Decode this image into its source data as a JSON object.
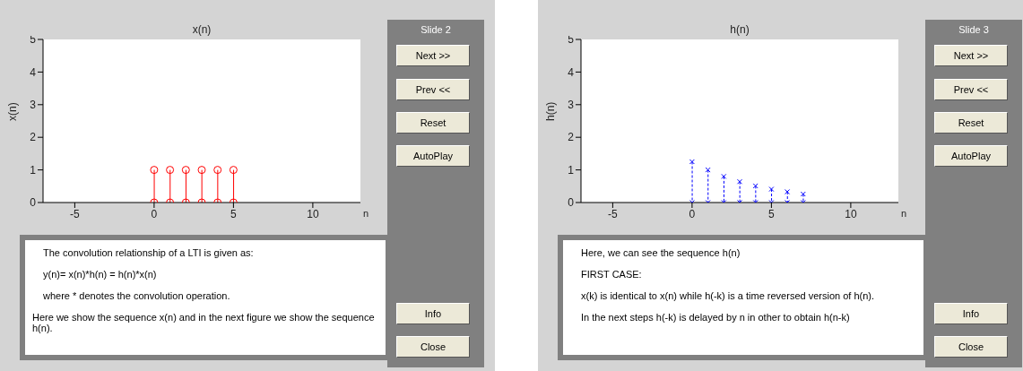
{
  "chart_data": [
    {
      "type": "lollipop",
      "title": "x(n)",
      "xlabel": "n",
      "ylabel": "x(n)",
      "x": [
        0,
        1,
        2,
        3,
        4,
        5
      ],
      "marker": "circle",
      "line_style": "solid",
      "xlim": [
        -7,
        13
      ],
      "xticks": [
        -5,
        0,
        5,
        10
      ],
      "ylim": [
        0,
        5
      ],
      "yticks": [
        0,
        1,
        2,
        3,
        4,
        5
      ],
      "grid": false,
      "legend": false,
      "series": [
        {
          "color": "#ff0000",
          "values": [
            1,
            1,
            1,
            1,
            1,
            1
          ]
        },
        {
          "type": "scatter",
          "color": "#ff0000",
          "values": [
            0,
            0,
            0,
            0,
            0,
            0
          ]
        }
      ],
      "annotations": [
        "Slide 2",
        "Next >>",
        "Prev <<",
        "Reset",
        "AutoPlay",
        "Info",
        "Close",
        "The convolution relationship of a LTI is given as:",
        "y(n)=   x(n)*h(n) = h(n)*x(n)",
        "where * denotes the convolution operation.",
        "Here we show the sequence x(n) and  in the next figure we show the sequence h(n)."
      ]
    },
    {
      "type": "lollipop",
      "title": "h(n)",
      "xlabel": "n",
      "ylabel": "h(n)",
      "x": [
        0,
        1,
        2,
        3,
        4,
        5,
        6,
        7
      ],
      "marker": "cross",
      "line_style": "dashed",
      "xlim": [
        -7,
        13
      ],
      "xticks": [
        -5,
        0,
        5,
        10
      ],
      "ylim": [
        0,
        5
      ],
      "yticks": [
        0,
        1,
        2,
        3,
        4,
        5
      ],
      "grid": false,
      "legend": false,
      "series": [
        {
          "color": "#0000ff",
          "values": [
            1.25,
            1,
            0.8,
            0.64,
            0.51,
            0.41,
            0.33,
            0.26
          ]
        },
        {
          "type": "scatter",
          "color": "#0000ff",
          "values": [
            0,
            0,
            0,
            0,
            0,
            0,
            0,
            0
          ]
        }
      ],
      "annotations": [
        "Slide 3",
        "Next >>",
        "Prev <<",
        "Reset",
        "AutoPlay",
        "Info",
        "Close",
        "Here, we can see the  sequence h(n)",
        "FIRST CASE:",
        "x(k) is identical to x(n) while h(-k) is a time reversed version of h(n).",
        "In the next steps h(-k) is delayed by n in other to obtain h(n-k)"
      ]
    }
  ]
}
